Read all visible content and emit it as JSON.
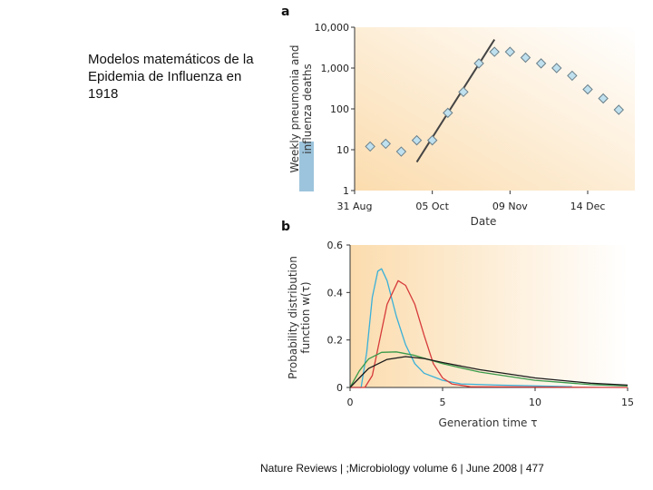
{
  "caption": "Modelos matemáticos de la Epidemia de Influenza en 1918",
  "footer": "Nature Reviews | ;Microbiology volume 6 | June 2008 | 477",
  "chart_data": [
    {
      "panel": "a",
      "type": "scatter",
      "xlabel": "Date",
      "ylabel": "Weekly pneumonia and influenza deaths",
      "yscale": "log",
      "ylim": [
        1,
        10000
      ],
      "yticks": [
        "1",
        "10",
        "100",
        "1,000",
        "10,000"
      ],
      "xticks": [
        "31 Aug",
        "05 Oct",
        "09 Nov",
        "14 Dec"
      ],
      "x": [
        "1918-09-07",
        "1918-09-14",
        "1918-09-21",
        "1918-09-28",
        "1918-10-05",
        "1918-10-12",
        "1918-10-19",
        "1918-10-26",
        "1918-11-02",
        "1918-11-09",
        "1918-11-16",
        "1918-11-23",
        "1918-11-30",
        "1918-12-07",
        "1918-12-14",
        "1918-12-21",
        "1918-12-28"
      ],
      "values": [
        12,
        14,
        9,
        17,
        17,
        80,
        260,
        1300,
        2500,
        2500,
        1800,
        1300,
        1000,
        650,
        300,
        180,
        95
      ],
      "fit_line": {
        "x": [
          "1918-09-28",
          "1918-11-02"
        ],
        "y": [
          5,
          5000
        ]
      },
      "marker_color": "#bfe0ee",
      "background": [
        "#fbdcae",
        "#ffffff"
      ]
    },
    {
      "panel": "b",
      "type": "line",
      "xlabel": "Generation time τ",
      "ylabel": "Probability distribution function w(τ)",
      "xlim": [
        0,
        15
      ],
      "ylim": [
        0,
        0.6
      ],
      "xticks": [
        "0",
        "5",
        "10",
        "15"
      ],
      "yticks": [
        "0",
        "0.2",
        "0.4",
        "0.6"
      ],
      "series": [
        {
          "color": "#3ab0d8",
          "points": [
            [
              0,
              0
            ],
            [
              0.6,
              0
            ],
            [
              0.9,
              0.15
            ],
            [
              1.2,
              0.38
            ],
            [
              1.5,
              0.49
            ],
            [
              1.7,
              0.5
            ],
            [
              2,
              0.45
            ],
            [
              2.5,
              0.3
            ],
            [
              3,
              0.18
            ],
            [
              3.5,
              0.1
            ],
            [
              4,
              0.06
            ],
            [
              5,
              0.03
            ],
            [
              6,
              0.015
            ],
            [
              8,
              0.01
            ],
            [
              12,
              0.003
            ]
          ]
        },
        {
          "color": "#d63a3a",
          "points": [
            [
              0,
              0
            ],
            [
              0.8,
              0
            ],
            [
              1.2,
              0.05
            ],
            [
              1.6,
              0.2
            ],
            [
              2,
              0.35
            ],
            [
              2.6,
              0.45
            ],
            [
              3,
              0.43
            ],
            [
              3.5,
              0.35
            ],
            [
              4,
              0.22
            ],
            [
              4.5,
              0.1
            ],
            [
              5,
              0.04
            ],
            [
              5.5,
              0.015
            ],
            [
              6.5,
              0.003
            ],
            [
              15,
              0
            ]
          ]
        },
        {
          "color": "#3a9a4a",
          "points": [
            [
              0,
              0
            ],
            [
              0.5,
              0.07
            ],
            [
              1,
              0.12
            ],
            [
              1.7,
              0.148
            ],
            [
              2.5,
              0.15
            ],
            [
              3.5,
              0.135
            ],
            [
              5,
              0.1
            ],
            [
              7,
              0.065
            ],
            [
              10,
              0.03
            ],
            [
              13,
              0.012
            ],
            [
              15,
              0.006
            ]
          ]
        },
        {
          "color": "#1a1a1a",
          "points": [
            [
              0,
              0
            ],
            [
              0.5,
              0.04
            ],
            [
              1,
              0.08
            ],
            [
              2,
              0.118
            ],
            [
              3,
              0.13
            ],
            [
              4,
              0.122
            ],
            [
              5,
              0.105
            ],
            [
              7,
              0.075
            ],
            [
              10,
              0.04
            ],
            [
              13,
              0.018
            ],
            [
              15,
              0.01
            ]
          ]
        }
      ]
    }
  ]
}
